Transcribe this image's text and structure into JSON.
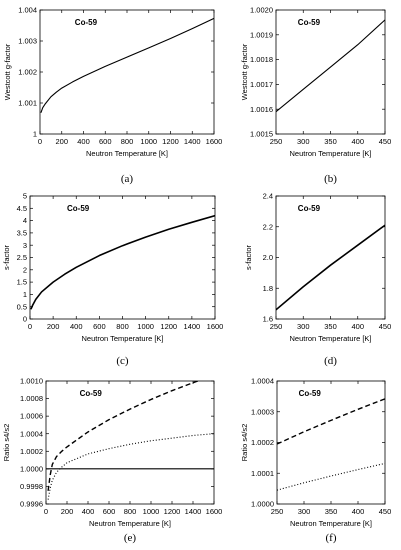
{
  "chart_data": [
    {
      "panel": "a",
      "caption": "(a)",
      "type": "line",
      "annotation": "Co-59",
      "xlabel": "Neutron Temperature [K]",
      "ylabel": "Westcott g-factor",
      "xlim": [
        0,
        1600
      ],
      "ylim": [
        1.0,
        1.004
      ],
      "xticks": [
        0,
        200,
        400,
        600,
        800,
        1000,
        1200,
        1400,
        1600
      ],
      "xtick_labels": [
        "0",
        "200",
        "400",
        "600",
        "800",
        "1000",
        "1200",
        "1400",
        "1600"
      ],
      "yticks": [
        1.0,
        1.001,
        1.002,
        1.003,
        1.004
      ],
      "ytick_labels": [
        "1",
        "1.001",
        "1.002",
        "1.003",
        "1.004"
      ],
      "grid": false,
      "series": [
        {
          "style": "solid",
          "x": [
            10,
            25,
            50,
            100,
            150,
            200,
            300,
            400,
            600,
            800,
            1000,
            1200,
            1400,
            1600
          ],
          "y": [
            1.0007,
            1.00085,
            1.00098,
            1.0012,
            1.00135,
            1.00148,
            1.00168,
            1.00186,
            1.00218,
            1.00248,
            1.00278,
            1.00308,
            1.0034,
            1.00373
          ]
        }
      ]
    },
    {
      "panel": "b",
      "caption": "(b)",
      "type": "line",
      "annotation": "Co-59",
      "xlabel": "Neutron Temperature [K]",
      "ylabel": "Westcott g-factor",
      "xlim": [
        250,
        450
      ],
      "ylim": [
        1.0015,
        1.002
      ],
      "xticks": [
        250,
        300,
        350,
        400,
        450
      ],
      "xtick_labels": [
        "250",
        "300",
        "350",
        "400",
        "450"
      ],
      "yticks": [
        1.0015,
        1.0016,
        1.0017,
        1.0018,
        1.0019,
        1.002
      ],
      "ytick_labels": [
        "1.0015",
        "1.0016",
        "1.0017",
        "1.0018",
        "1.0019",
        "1.0020"
      ],
      "grid": false,
      "series": [
        {
          "style": "solid",
          "x": [
            250,
            300,
            350,
            400,
            450
          ],
          "y": [
            1.00159,
            1.00168,
            1.00177,
            1.00186,
            1.00196
          ]
        }
      ]
    },
    {
      "panel": "c",
      "caption": "(c)",
      "type": "line",
      "annotation": "Co-59",
      "xlabel": "Neutron Temperature [K]",
      "ylabel": "s-factor",
      "xlim": [
        0,
        1600
      ],
      "ylim": [
        0,
        5
      ],
      "xticks": [
        0,
        200,
        400,
        600,
        800,
        1000,
        1200,
        1400,
        1600
      ],
      "xtick_labels": [
        "0",
        "200",
        "400",
        "600",
        "800",
        "1000",
        "1200",
        "1400",
        "1600"
      ],
      "yticks": [
        0,
        0.5,
        1,
        1.5,
        2,
        2.5,
        3,
        3.5,
        4,
        4.5,
        5
      ],
      "ytick_labels": [
        "0",
        "0.5",
        "1",
        "1.5",
        "2",
        "2.5",
        "3",
        "3.5",
        "4",
        "4.5",
        "5"
      ],
      "grid": false,
      "series": [
        {
          "style": "solid",
          "x": [
            10,
            25,
            50,
            100,
            200,
            300,
            400,
            600,
            800,
            1000,
            1200,
            1400,
            1600
          ],
          "y": [
            0.42,
            0.58,
            0.8,
            1.1,
            1.5,
            1.82,
            2.1,
            2.58,
            2.98,
            3.33,
            3.65,
            3.93,
            4.2
          ]
        }
      ]
    },
    {
      "panel": "d",
      "caption": "(d)",
      "type": "line",
      "annotation": "Co-59",
      "xlabel": "Neutron Temperature [K]",
      "ylabel": "s-factor",
      "xlim": [
        250,
        450
      ],
      "ylim": [
        1.6,
        2.4
      ],
      "xticks": [
        250,
        300,
        350,
        400,
        450
      ],
      "xtick_labels": [
        "250",
        "300",
        "350",
        "400",
        "450"
      ],
      "yticks": [
        1.6,
        1.8,
        2.0,
        2.2,
        2.4
      ],
      "ytick_labels": [
        "1.6",
        "1.8",
        "2.0",
        "2.2",
        "2.4"
      ],
      "grid": false,
      "series": [
        {
          "style": "solid",
          "x": [
            250,
            300,
            350,
            400,
            450
          ],
          "y": [
            1.66,
            1.81,
            1.95,
            2.08,
            2.21
          ]
        }
      ]
    },
    {
      "panel": "e",
      "caption": "(e)",
      "type": "line",
      "annotation": "Co-59",
      "xlabel": "Neutron Temperature [K]",
      "ylabel": "Ratio s4/s2",
      "xlim": [
        0,
        1600
      ],
      "ylim": [
        0.9996,
        1.001
      ],
      "xticks": [
        0,
        200,
        400,
        600,
        800,
        1000,
        1200,
        1400,
        1600
      ],
      "xtick_labels": [
        "0",
        "200",
        "400",
        "600",
        "800",
        "1000",
        "1200",
        "1400",
        "1600"
      ],
      "yticks": [
        0.9996,
        0.9998,
        1.0,
        1.0002,
        1.0004,
        1.0006,
        1.0008,
        1.001
      ],
      "ytick_labels": [
        "0.9996",
        "0.9998",
        "1.0000",
        "1.0002",
        "1.0004",
        "1.0006",
        "1.0008",
        "1.0010"
      ],
      "grid": false,
      "series": [
        {
          "style": "dashed",
          "x": [
            20,
            40,
            60,
            100,
            150,
            200,
            400,
            600,
            800,
            1000,
            1200,
            1400,
            1600
          ],
          "y": [
            0.99975,
            0.99993,
            1.00005,
            1.00014,
            1.0002,
            1.00025,
            1.00042,
            1.00056,
            1.00068,
            1.00079,
            1.00089,
            1.00098,
            1.00107
          ]
        },
        {
          "style": "dotted",
          "x": [
            20,
            40,
            60,
            100,
            150,
            200,
            400,
            600,
            800,
            1000,
            1200,
            1400,
            1600
          ],
          "y": [
            0.99965,
            0.99978,
            0.99987,
            0.99996,
            1.00002,
            1.00007,
            1.00017,
            1.00023,
            1.00028,
            1.00032,
            1.00035,
            1.00038,
            1.0004
          ]
        },
        {
          "style": "solid",
          "x": [
            0,
            1600
          ],
          "y": [
            1.0,
            1.0
          ]
        }
      ]
    },
    {
      "panel": "f",
      "caption": "(f)",
      "type": "line",
      "annotation": "Co-59",
      "xlabel": "Neutron Temperature [K]",
      "ylabel": "Ratio s4/s2",
      "xlim": [
        250,
        450
      ],
      "ylim": [
        1.0,
        1.0004
      ],
      "xticks": [
        250,
        300,
        350,
        400,
        450
      ],
      "xtick_labels": [
        "250",
        "300",
        "350",
        "400",
        "450"
      ],
      "yticks": [
        1.0,
        1.0001,
        1.0002,
        1.0003,
        1.0004
      ],
      "ytick_labels": [
        "1.0000",
        "1.0001",
        "1.0002",
        "1.0003",
        "1.0004"
      ],
      "grid": false,
      "series": [
        {
          "style": "dashed",
          "x": [
            250,
            300,
            350,
            400,
            450
          ],
          "y": [
            1.000195,
            1.000235,
            1.000272,
            1.000308,
            1.000342
          ]
        },
        {
          "style": "dotted",
          "x": [
            250,
            300,
            350,
            400,
            450
          ],
          "y": [
            1.000045,
            1.000069,
            1.000091,
            1.000112,
            1.000132
          ]
        }
      ]
    }
  ]
}
